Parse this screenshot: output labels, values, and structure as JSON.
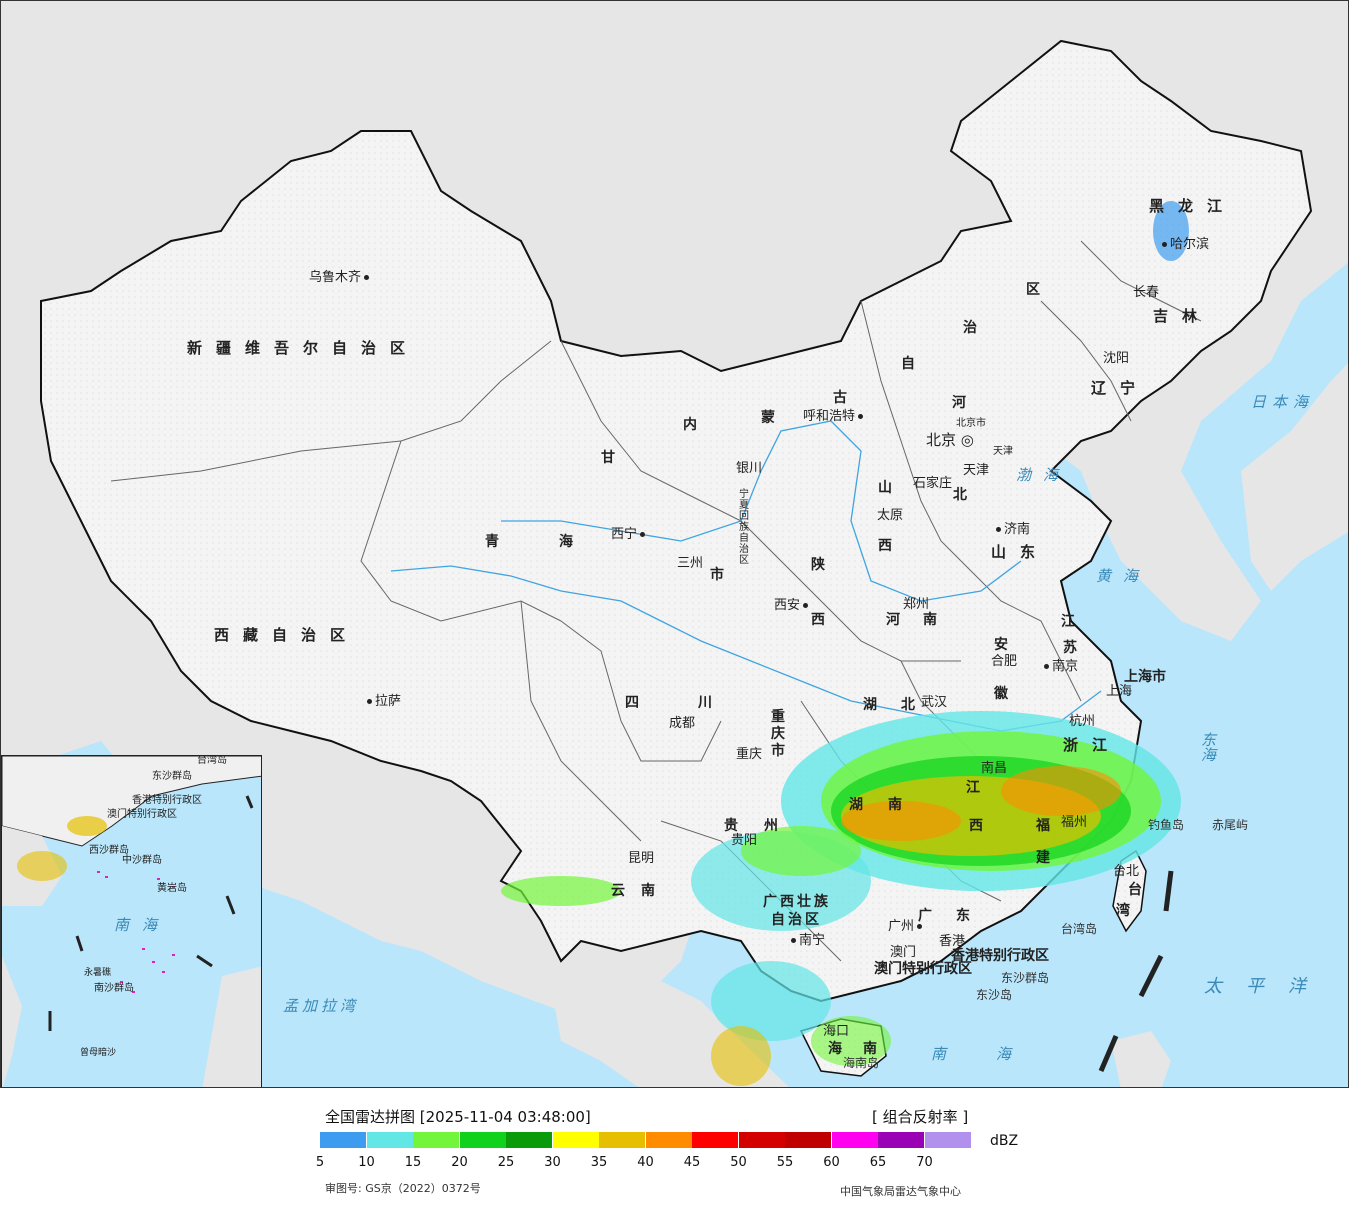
{
  "map": {
    "cities": [
      {
        "id": "urumqi",
        "name": "乌鲁木齐"
      },
      {
        "id": "lhasa",
        "name": "拉萨"
      },
      {
        "id": "xining",
        "name": "西宁"
      },
      {
        "id": "lanzhou",
        "name": "三州"
      },
      {
        "id": "yinchuan",
        "name": "银川"
      },
      {
        "id": "hohhot",
        "name": "呼和浩特"
      },
      {
        "id": "beijing",
        "name": "北京"
      },
      {
        "id": "tianjin",
        "name": "天津"
      },
      {
        "id": "shijiazhuang",
        "name": "石家庄"
      },
      {
        "id": "taiyuan",
        "name": "太原"
      },
      {
        "id": "jinan",
        "name": "济南"
      },
      {
        "id": "zhengzhou",
        "name": "郑州"
      },
      {
        "id": "xian",
        "name": "西安"
      },
      {
        "id": "chengdu",
        "name": "成都"
      },
      {
        "id": "chongqing",
        "name": "重庆"
      },
      {
        "id": "kunming",
        "name": "昆明"
      },
      {
        "id": "guiyang",
        "name": "贵阳"
      },
      {
        "id": "nanning",
        "name": "南宁"
      },
      {
        "id": "guangzhou",
        "name": "广州"
      },
      {
        "id": "hongkong",
        "name": "香港"
      },
      {
        "id": "macao",
        "name": "澳门"
      },
      {
        "id": "haikou",
        "name": "海口"
      },
      {
        "id": "fuzhou",
        "name": "福州"
      },
      {
        "id": "nanchang",
        "name": "南昌"
      },
      {
        "id": "wuhan",
        "name": "武汉"
      },
      {
        "id": "hefei",
        "name": "合肥"
      },
      {
        "id": "nanjing",
        "name": "南京"
      },
      {
        "id": "shanghai",
        "name": "上海"
      },
      {
        "id": "hangzhou",
        "name": "杭州"
      },
      {
        "id": "taibei",
        "name": "台北"
      },
      {
        "id": "shenyang",
        "name": "沈阳"
      },
      {
        "id": "changchun",
        "name": "长春"
      },
      {
        "id": "harbin",
        "name": "哈尔滨"
      }
    ],
    "provinces": {
      "xinjiang": "新疆维吾尔自治区",
      "xizang": "西藏自治区",
      "qinghai_a": "青",
      "qinghai_b": "海",
      "gansu": "甘",
      "neimeng_nei": "内",
      "neimeng_meng": "蒙",
      "neimeng_gu": "古",
      "neimeng_zi": "自",
      "neimeng_zhi": "治",
      "neimeng_qu": "区",
      "heilongjiang": "黑龙江",
      "jilin": "吉林",
      "liaoning": "辽宁",
      "hebei_he": "河",
      "hebei_bei": "北",
      "beijing_shi": "北京市",
      "tianjin_shi": "天津",
      "shanxi_shan": "山",
      "shanxi_xi": "西",
      "shandong": "山东",
      "henan_he": "河",
      "henan_nan": "南",
      "shaanxi_shan": "陕",
      "shaanxi_xi": "西",
      "ningxia": "宁夏回族自治区",
      "sichuan_si": "四",
      "sichuan_chuan": "川",
      "chongqing_shi": "重庆市",
      "hubei_hu": "湖",
      "hubei_bei": "北",
      "hunan_hu": "湖",
      "hunan_nan": "南",
      "jiangxi_jiang": "江",
      "jiangxi_xi": "西",
      "anhui_an": "安",
      "anhui_hui": "徽",
      "jiangsu_jiang": "江",
      "jiangsu_su": "苏",
      "shanghai_shi": "上海市",
      "zhejiang": "浙江",
      "fujian_fu": "福",
      "fujian_jian": "建",
      "guizhou_gui": "贵",
      "guizhou_zhou": "州",
      "yunnan_yun": "云",
      "yunnan_nan": "南",
      "guangxi_a": "广西壮族",
      "guangxi_b": "自治区",
      "guangdong_guang": "广",
      "guangdong_dong": "东",
      "hainan_hai": "海",
      "hainan_nan": "南",
      "taiwan_tai": "台",
      "taiwan_wan": "湾",
      "gangao_a": "香港特别行政区",
      "gangao_b": "澳门特别行政区",
      "gansu_shi": "市"
    },
    "seas": {
      "bohai": "渤海",
      "huanghai": "黄海",
      "donghai": "东海",
      "nanhai": "南海",
      "ribenhai": "日本海",
      "taipingyang": "太平洋",
      "mengjialawan": "孟加拉湾"
    },
    "islands": {
      "diaoyudao": "钓鱼岛",
      "chiweiyu": "赤尾屿",
      "dongsha_qundao": "东沙群岛",
      "dongsha_dao": "东沙岛",
      "hainan_dao": "海南岛",
      "taiwan_dao": "台湾岛"
    },
    "inset": {
      "nanhai_a": "南",
      "nanhai_b": "海",
      "xisha": "西沙群岛",
      "zhongsha": "中沙群岛",
      "huangyan": "黄岩岛",
      "nansha": "南沙群岛",
      "yongshu": "永暑礁",
      "zengmu": "曾母暗沙",
      "dongsha": "东沙群岛",
      "hk": "香港特别行政区",
      "mo": "澳门特别行政区",
      "taiwan": "台湾岛"
    }
  },
  "footer": {
    "title": "全国雷达拼图 [2025-11-04 03:48:00]",
    "product": "[ 组合反射率 ]",
    "unit": "dBZ",
    "approval": "审图号: GS京（2022）0372号",
    "agency": "中国气象局雷达气象中心"
  },
  "legend": {
    "colors": [
      "#3d9cf0",
      "#63e6e6",
      "#72f53a",
      "#10d21c",
      "#0a9b0a",
      "#ffff00",
      "#e6c000",
      "#ff8c00",
      "#ff0000",
      "#d40000",
      "#c00000",
      "#ff00f0",
      "#9a00b4",
      "#b291ee"
    ],
    "ticks": [
      "5",
      "10",
      "15",
      "20",
      "25",
      "30",
      "35",
      "40",
      "45",
      "50",
      "55",
      "60",
      "65",
      "70"
    ]
  }
}
